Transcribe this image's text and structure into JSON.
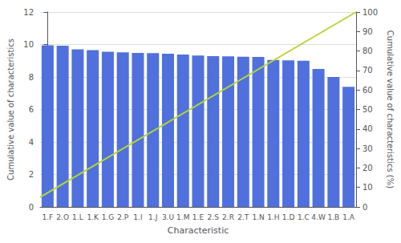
{
  "chart_data": {
    "type": "bar",
    "xlabel": "Characteristic",
    "ylabel": "Cumulative value of characteristics",
    "y2label": "Cumulative value of characteristics (%)",
    "categories": [
      "1.F",
      "2.O",
      "1.L",
      "1.K",
      "1.G",
      "2.P",
      "1.I",
      "1.J",
      "3.U",
      "1.M",
      "1.E",
      "2.S",
      "2.R",
      "2.T",
      "1.N",
      "1.H",
      "1.D",
      "1.C",
      "4.W",
      "1.B",
      "1.A"
    ],
    "series": [
      {
        "type": "bar",
        "values": [
          9.95,
          9.93,
          9.7,
          9.65,
          9.55,
          9.52,
          9.48,
          9.47,
          9.43,
          9.38,
          9.32,
          9.28,
          9.27,
          9.25,
          9.23,
          9.05,
          9.02,
          9.0,
          8.5,
          8.0,
          7.4
        ]
      },
      {
        "type": "line",
        "axis": "y2",
        "x": [
          -0.5,
          20.5
        ],
        "values": [
          5.0,
          100.0
        ]
      }
    ],
    "ylim": [
      0,
      12
    ],
    "yticks": [
      0,
      2,
      4,
      6,
      8,
      10,
      12
    ],
    "y2lim": [
      0,
      100
    ],
    "y2ticks": [
      0,
      10,
      20,
      30,
      40,
      50,
      60,
      70,
      80,
      90,
      100
    ],
    "grid": true
  }
}
